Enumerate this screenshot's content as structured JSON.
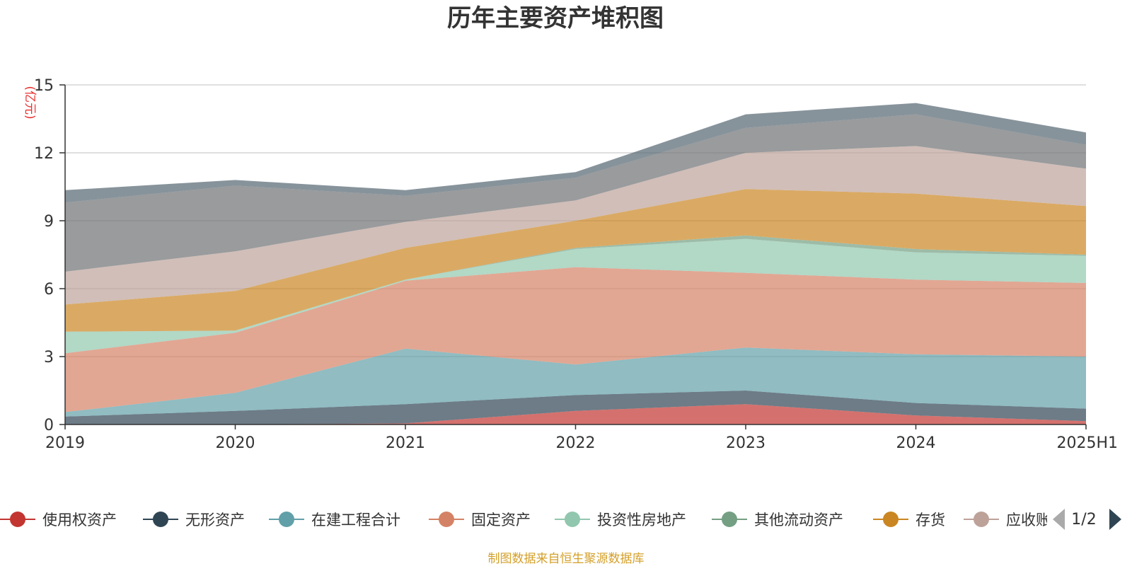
{
  "chart_data": {
    "type": "area",
    "stacked": true,
    "title": "历年主要资产堆积图",
    "unit_label": "(亿元)",
    "categories": [
      "2019",
      "2020",
      "2021",
      "2022",
      "2023",
      "2024",
      "2025H1"
    ],
    "ylim": [
      0,
      15
    ],
    "yticks": [
      0,
      3,
      6,
      9,
      12,
      15
    ],
    "grid": true,
    "legend_position": "bottom",
    "legend_page": "1/2",
    "series": [
      {
        "name": "使用权资产",
        "color": "#c23531",
        "values": [
          0.0,
          0.0,
          0.05,
          0.6,
          0.9,
          0.4,
          0.15
        ]
      },
      {
        "name": "无形资产",
        "color": "#2f4554",
        "values": [
          0.35,
          0.6,
          0.85,
          0.7,
          0.6,
          0.55,
          0.55
        ]
      },
      {
        "name": "在建工程合计",
        "color": "#61a0a8",
        "values": [
          0.2,
          0.8,
          2.45,
          1.35,
          1.9,
          2.15,
          2.3
        ]
      },
      {
        "name": "固定资产",
        "color": "#d48265",
        "values": [
          2.6,
          2.65,
          3.0,
          4.3,
          3.3,
          3.3,
          3.25
        ]
      },
      {
        "name": "投资性房地产",
        "color": "#91c7ae",
        "values": [
          0.95,
          0.1,
          0.05,
          0.8,
          1.5,
          1.2,
          1.2
        ]
      },
      {
        "name": "其他流动资产",
        "color": "#749f83",
        "values": [
          0.0,
          0.0,
          0.0,
          0.05,
          0.15,
          0.15,
          0.05
        ]
      },
      {
        "name": "存货",
        "color": "#ca8622",
        "values": [
          1.2,
          1.75,
          1.4,
          1.2,
          2.05,
          2.45,
          2.15
        ]
      },
      {
        "name": "应收账款",
        "color": "#bda29a",
        "values": [
          1.45,
          1.75,
          1.15,
          0.9,
          1.6,
          2.1,
          1.65
        ]
      },
      {
        "name": "",
        "color": "#6e7074",
        "values": [
          3.05,
          2.9,
          1.15,
          1.0,
          1.1,
          1.4,
          1.05
        ]
      },
      {
        "name": "",
        "color": "#546570",
        "values": [
          0.55,
          0.25,
          0.25,
          0.25,
          0.6,
          0.5,
          0.55
        ]
      }
    ]
  },
  "legend": {
    "items": [
      {
        "label": "使用权资产",
        "color": "#c23531"
      },
      {
        "label": "无形资产",
        "color": "#2f4554"
      },
      {
        "label": "在建工程合计",
        "color": "#61a0a8"
      },
      {
        "label": "固定资产",
        "color": "#d48265"
      },
      {
        "label": "投资性房地产",
        "color": "#91c7ae"
      },
      {
        "label": "其他流动资产",
        "color": "#749f83"
      },
      {
        "label": "存货",
        "color": "#ca8622"
      },
      {
        "label": "应收账",
        "color": "#bda29a"
      }
    ]
  },
  "source_note": "制图数据来自恒生聚源数据库"
}
